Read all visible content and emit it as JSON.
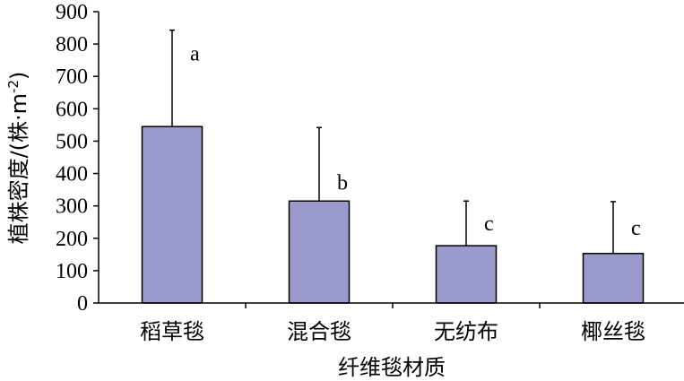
{
  "chart_data": {
    "type": "bar",
    "categories": [
      "稻草毯",
      "混合毯",
      "无纺布",
      "椰丝毯"
    ],
    "values": [
      545,
      315,
      177,
      153
    ],
    "error_upper": [
      843,
      542,
      315,
      313
    ],
    "significance": [
      "a",
      "b",
      "c",
      "c"
    ],
    "xlabel": "纤维毯材质",
    "ylabel_main": "植株密度/(株·m",
    "ylabel_sup": "-2",
    "ylabel_close": ")",
    "ylim": [
      0,
      900
    ],
    "yticks": [
      0,
      100,
      200,
      300,
      400,
      500,
      600,
      700,
      800,
      900
    ],
    "bar_color": "#9999cc",
    "grid": false,
    "legend": "none"
  }
}
